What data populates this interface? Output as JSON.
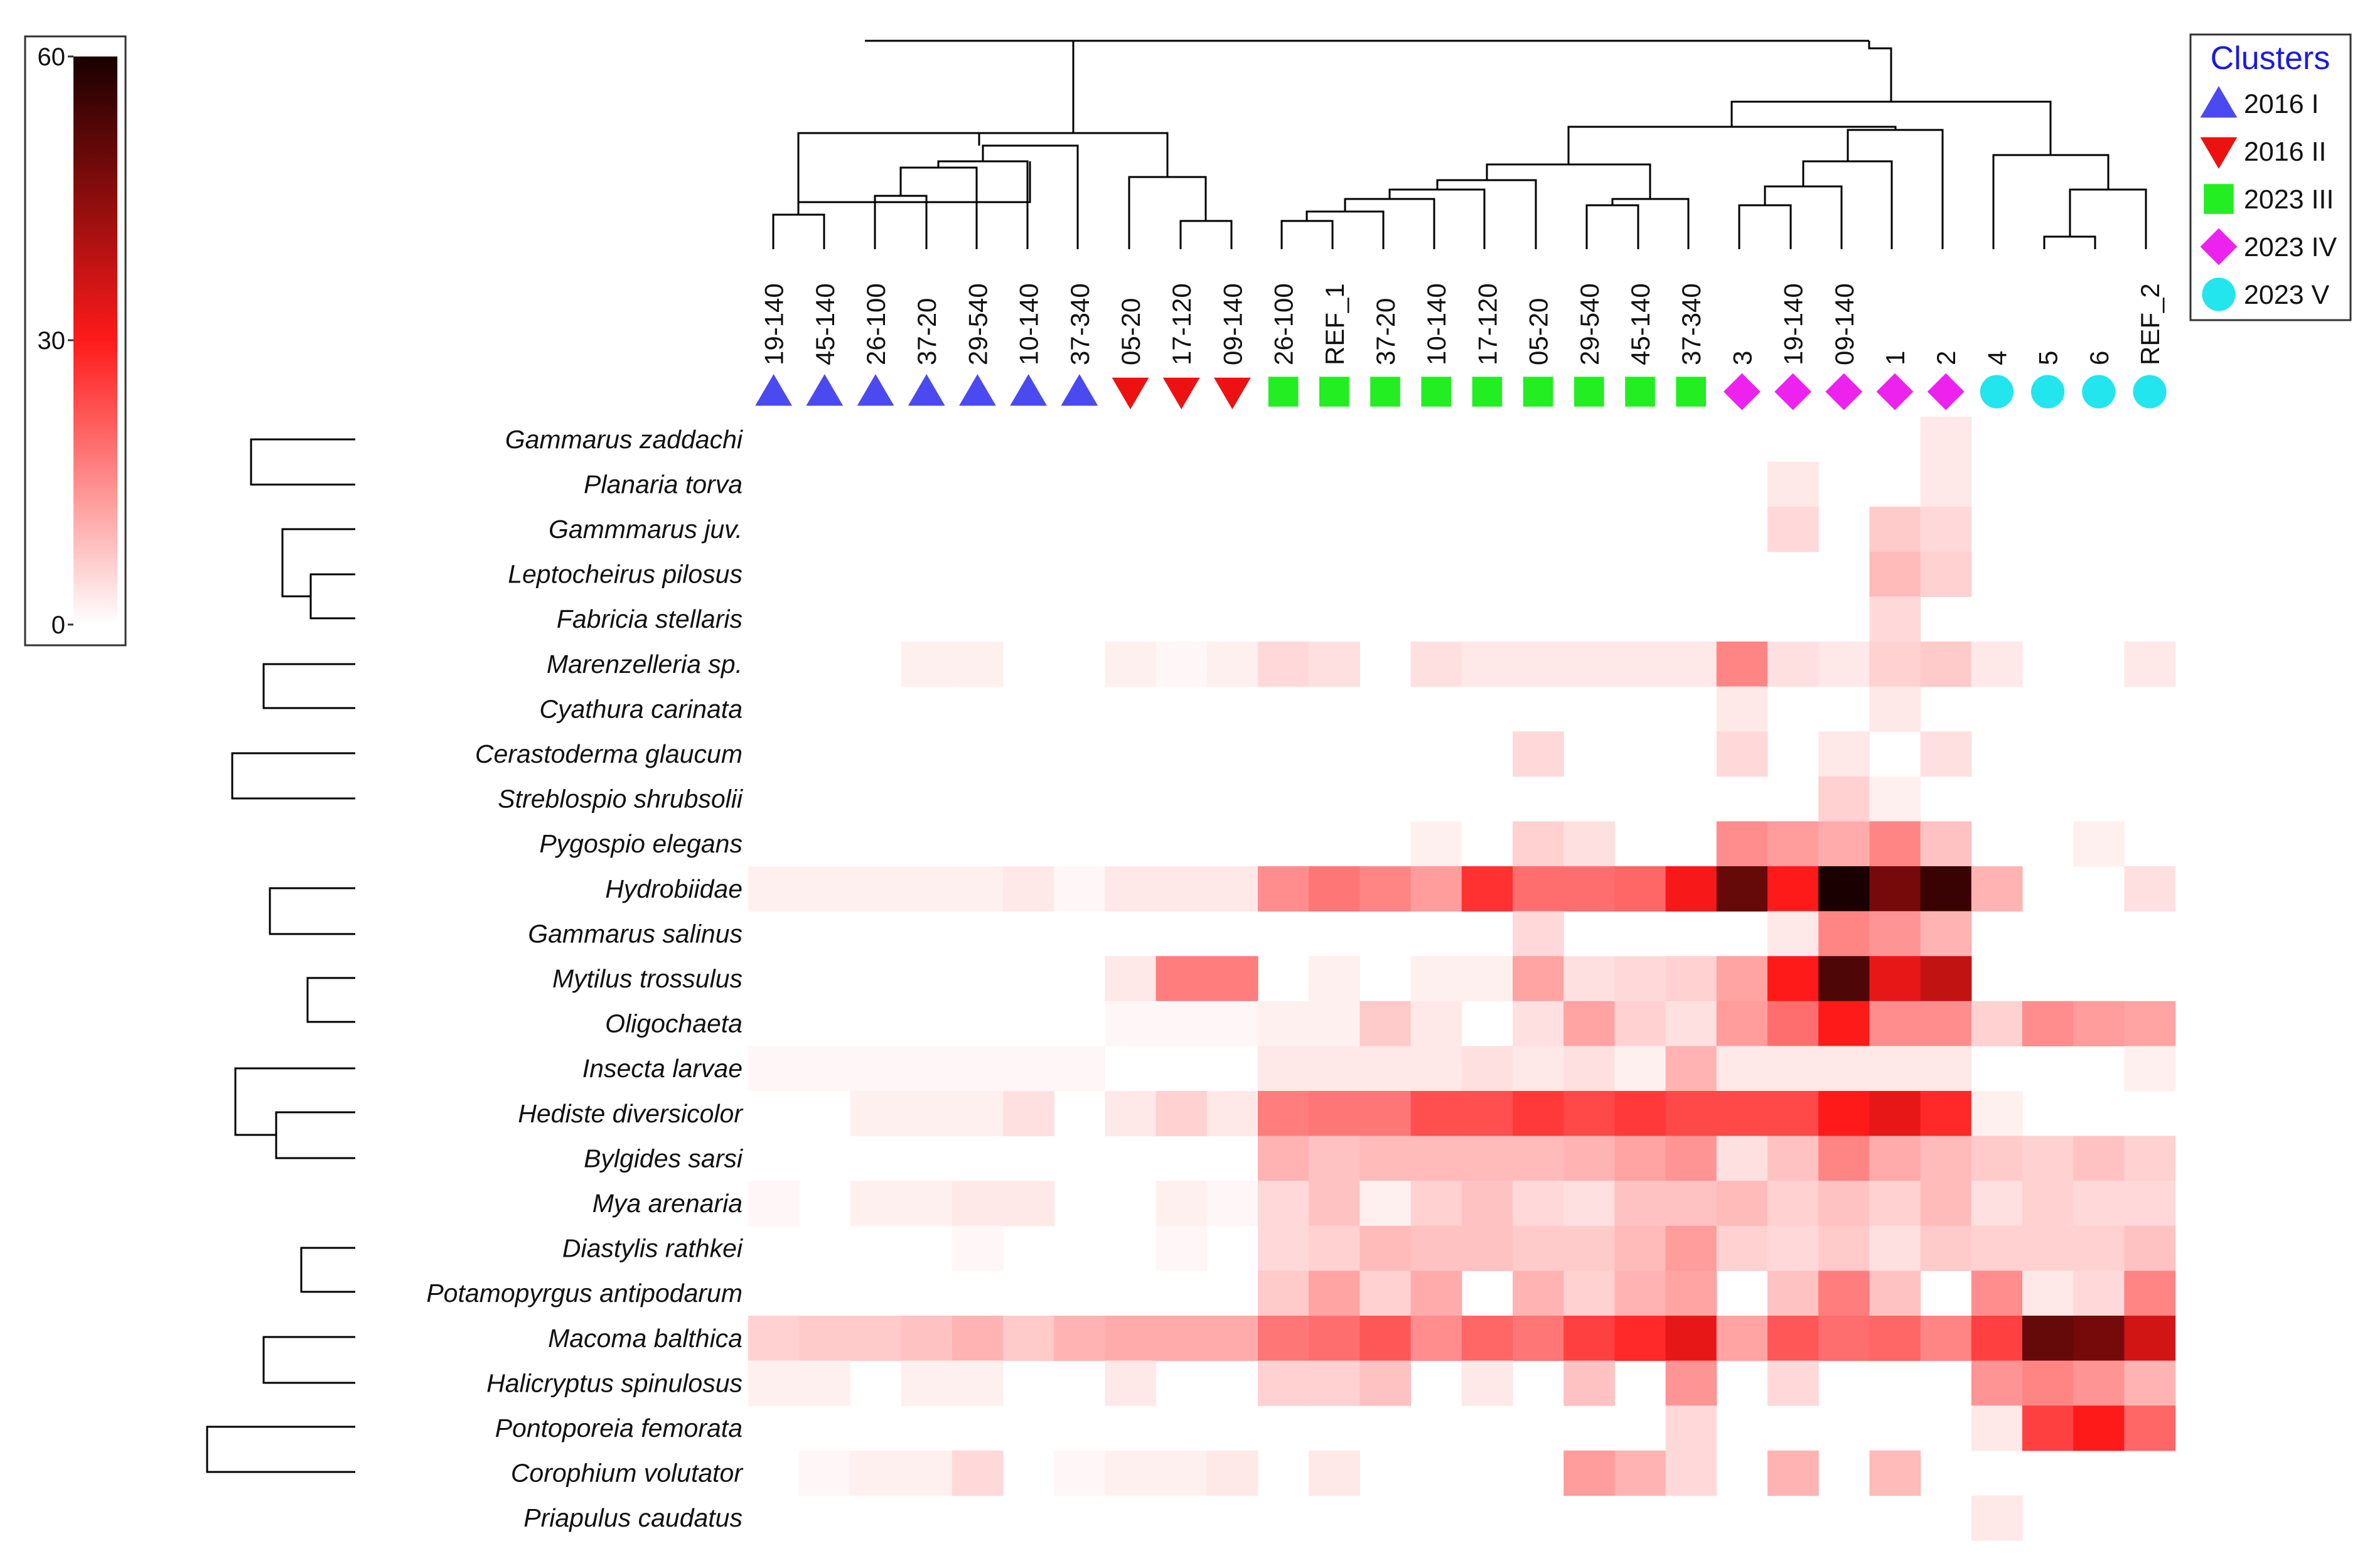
{
  "chart_data": {
    "type": "heatmap",
    "title": "",
    "xlabel": "",
    "ylabel": "",
    "columns": [
      "19-140",
      "45-140",
      "26-100",
      "37-20",
      "29-540",
      "10-140",
      "37-340",
      "05-20",
      "17-120",
      "09-140",
      "26-100",
      "REF_1",
      "37-20",
      "10-140",
      "17-120",
      "05-20",
      "29-540",
      "45-140",
      "37-340",
      "3",
      "19-140",
      "09-140",
      "1",
      "2",
      "4",
      "5",
      "6",
      "REF_2"
    ],
    "column_clusters": [
      0,
      0,
      0,
      0,
      0,
      0,
      0,
      1,
      1,
      1,
      2,
      2,
      2,
      2,
      2,
      2,
      2,
      2,
      2,
      3,
      3,
      3,
      3,
      3,
      4,
      4,
      4,
      4
    ],
    "rows": [
      "Gammarus zaddachi",
      "Planaria torva",
      "Gammmarus juv.",
      "Leptocheirus pilosus",
      "Fabricia stellaris",
      "Marenzelleria sp.",
      "Cyathura carinata",
      "Cerastoderma glaucum",
      "Streblospio shrubsolii",
      "Pygospio elegans",
      "Hydrobiidae",
      "Gammarus salinus",
      "Mytilus trossulus",
      "Oligochaeta",
      "Insecta larvae",
      "Hediste diversicolor",
      "Bylgides sarsi",
      "Mya arenaria",
      "Diastylis rathkei",
      "Potamopyrgus antipodarum",
      "Macoma balthica",
      "Halicryptus spinulosus",
      "Pontoporeia femorata",
      "Corophium volutator",
      "Priapulus caudatus"
    ],
    "values": [
      [
        0,
        0,
        0,
        0,
        0,
        0,
        0,
        0,
        0,
        0,
        0,
        0,
        0,
        0,
        0,
        0,
        0,
        0,
        0,
        0,
        0,
        0,
        0,
        3,
        0,
        0,
        0,
        0
      ],
      [
        0,
        0,
        0,
        0,
        0,
        0,
        0,
        0,
        0,
        0,
        0,
        0,
        0,
        0,
        0,
        0,
        0,
        0,
        0,
        0,
        3,
        0,
        0,
        3,
        0,
        0,
        0,
        0
      ],
      [
        0,
        0,
        0,
        0,
        0,
        0,
        0,
        0,
        0,
        0,
        0,
        0,
        0,
        0,
        0,
        0,
        0,
        0,
        0,
        0,
        5,
        0,
        7,
        5,
        0,
        0,
        0,
        0
      ],
      [
        0,
        0,
        0,
        0,
        0,
        0,
        0,
        0,
        0,
        0,
        0,
        0,
        0,
        0,
        0,
        0,
        0,
        0,
        0,
        0,
        0,
        0,
        9,
        6,
        0,
        0,
        0,
        0
      ],
      [
        0,
        0,
        0,
        0,
        0,
        0,
        0,
        0,
        0,
        0,
        0,
        0,
        0,
        0,
        0,
        0,
        0,
        0,
        0,
        0,
        0,
        0,
        5,
        0,
        0,
        0,
        0,
        0
      ],
      [
        0,
        0,
        0,
        2,
        2,
        0,
        0,
        2,
        1,
        2,
        5,
        4,
        0,
        4,
        3,
        3,
        3,
        3,
        3,
        16,
        4,
        3,
        6,
        7,
        3,
        0,
        0,
        3
      ],
      [
        0,
        0,
        0,
        0,
        0,
        0,
        0,
        0,
        0,
        0,
        0,
        0,
        0,
        0,
        0,
        0,
        0,
        0,
        0,
        3,
        0,
        0,
        3,
        0,
        0,
        0,
        0,
        0
      ],
      [
        0,
        0,
        0,
        0,
        0,
        0,
        0,
        0,
        0,
        0,
        0,
        0,
        0,
        0,
        0,
        5,
        0,
        0,
        0,
        5,
        0,
        3,
        0,
        4,
        0,
        0,
        0,
        0
      ],
      [
        0,
        0,
        0,
        0,
        0,
        0,
        0,
        0,
        0,
        0,
        0,
        0,
        0,
        0,
        0,
        0,
        0,
        0,
        0,
        0,
        0,
        6,
        2,
        0,
        0,
        0,
        0,
        0
      ],
      [
        0,
        0,
        0,
        0,
        0,
        0,
        0,
        0,
        0,
        0,
        0,
        0,
        0,
        2,
        0,
        6,
        4,
        0,
        0,
        15,
        13,
        11,
        16,
        8,
        0,
        0,
        2,
        0
      ],
      [
        2,
        2,
        2,
        2,
        2,
        3,
        1,
        3,
        3,
        3,
        15,
        18,
        16,
        13,
        27,
        19,
        19,
        20,
        31,
        50,
        30,
        60,
        48,
        56,
        10,
        0,
        0,
        4
      ],
      [
        0,
        0,
        0,
        0,
        0,
        0,
        0,
        0,
        0,
        0,
        0,
        0,
        0,
        0,
        0,
        5,
        0,
        0,
        0,
        0,
        3,
        16,
        14,
        10,
        0,
        0,
        0,
        0
      ],
      [
        0,
        0,
        0,
        0,
        0,
        0,
        0,
        3,
        17,
        17,
        0,
        2,
        0,
        2,
        2,
        12,
        4,
        5,
        6,
        12,
        30,
        53,
        33,
        38,
        0,
        0,
        0,
        0
      ],
      [
        0,
        0,
        0,
        0,
        0,
        0,
        0,
        1,
        1,
        1,
        2,
        2,
        7,
        3,
        0,
        4,
        12,
        6,
        4,
        13,
        19,
        30,
        15,
        15,
        6,
        15,
        13,
        12
      ],
      [
        1,
        1,
        1,
        1,
        1,
        1,
        1,
        0,
        0,
        0,
        3,
        3,
        3,
        3,
        4,
        3,
        4,
        2,
        10,
        3,
        3,
        3,
        3,
        3,
        0,
        0,
        0,
        2
      ],
      [
        0,
        0,
        2,
        2,
        2,
        4,
        0,
        3,
        6,
        3,
        17,
        18,
        18,
        23,
        23,
        26,
        24,
        26,
        24,
        24,
        24,
        30,
        33,
        28,
        2,
        0,
        0,
        0
      ],
      [
        0,
        0,
        0,
        0,
        0,
        0,
        0,
        0,
        0,
        0,
        10,
        8,
        9,
        9,
        9,
        9,
        10,
        12,
        14,
        4,
        8,
        16,
        11,
        9,
        7,
        6,
        8,
        6
      ],
      [
        1,
        0,
        2,
        2,
        3,
        3,
        0,
        0,
        2,
        1,
        5,
        8,
        2,
        6,
        8,
        5,
        4,
        8,
        8,
        9,
        6,
        8,
        6,
        9,
        4,
        6,
        5,
        5
      ],
      [
        0,
        0,
        0,
        0,
        1,
        0,
        0,
        0,
        1,
        0,
        5,
        6,
        9,
        8,
        8,
        7,
        7,
        9,
        13,
        6,
        5,
        7,
        4,
        7,
        6,
        6,
        6,
        8
      ],
      [
        0,
        0,
        0,
        0,
        0,
        0,
        0,
        0,
        0,
        0,
        7,
        12,
        6,
        11,
        0,
        10,
        6,
        10,
        12,
        0,
        8,
        17,
        8,
        0,
        15,
        3,
        5,
        16
      ],
      [
        6,
        7,
        7,
        8,
        10,
        7,
        10,
        11,
        11,
        11,
        18,
        19,
        22,
        15,
        20,
        18,
        25,
        28,
        33,
        12,
        22,
        19,
        20,
        16,
        25,
        50,
        48,
        36
      ],
      [
        2,
        2,
        0,
        2,
        2,
        0,
        0,
        3,
        0,
        0,
        6,
        6,
        8,
        0,
        3,
        0,
        8,
        0,
        14,
        0,
        5,
        0,
        0,
        0,
        14,
        16,
        14,
        10
      ],
      [
        0,
        0,
        0,
        0,
        0,
        0,
        0,
        0,
        0,
        0,
        0,
        0,
        0,
        0,
        0,
        0,
        0,
        0,
        5,
        0,
        0,
        0,
        0,
        0,
        3,
        25,
        30,
        20
      ],
      [
        0,
        1,
        2,
        2,
        5,
        0,
        1,
        2,
        2,
        3,
        0,
        3,
        0,
        0,
        0,
        0,
        13,
        10,
        5,
        0,
        10,
        0,
        9,
        0,
        0,
        0,
        0,
        0
      ],
      [
        0,
        0,
        0,
        0,
        0,
        0,
        0,
        0,
        0,
        0,
        0,
        0,
        0,
        0,
        0,
        0,
        0,
        0,
        0,
        0,
        0,
        0,
        0,
        0,
        3,
        0,
        0,
        0
      ]
    ],
    "color_scale": {
      "min": 0,
      "mid": 30,
      "max": 60,
      "colors": [
        "#ffffff",
        "#ff1a1a",
        "#1a0000"
      ]
    },
    "colorbar_ticks": [
      "60",
      "30",
      "0"
    ],
    "legend": {
      "title": "Clusters",
      "position": "top-right",
      "entries": [
        {
          "label": "2016 I",
          "marker": "triangle-up",
          "color": "#4a4af0"
        },
        {
          "label": "2016 II",
          "marker": "triangle-down",
          "color": "#ee1111"
        },
        {
          "label": "2023 III",
          "marker": "square",
          "color": "#22ee22"
        },
        {
          "label": "2023 IV",
          "marker": "diamond",
          "color": "#ee22ee"
        },
        {
          "label": "2023 V",
          "marker": "circle",
          "color": "#22e5ee"
        }
      ]
    }
  }
}
